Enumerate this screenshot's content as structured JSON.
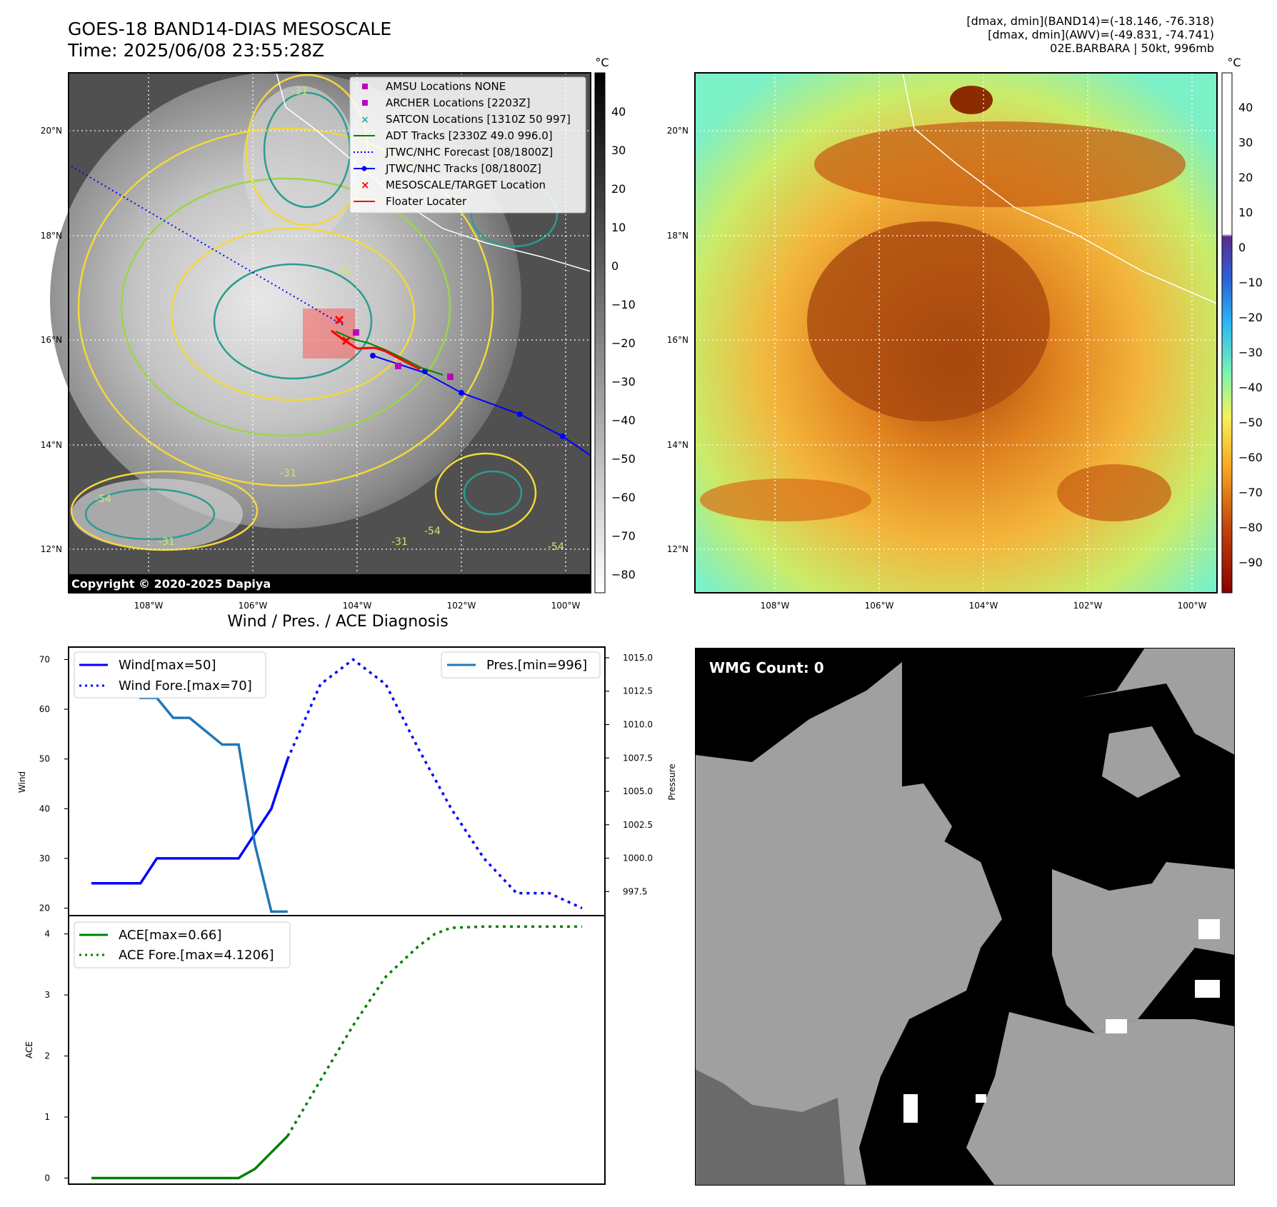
{
  "header": {
    "title_line1": "GOES-18 BAND14-DIAS MESOSCALE",
    "title_line2": "Time: 2025/06/08 23:55:28Z",
    "info_line1": "[dmax, dmin](BAND14)=(-18.146, -76.318)",
    "info_line2": "[dmax, dmin](AWV)=(-49.831, -74.741)",
    "info_line3": "02E.BARBARA | 50kt, 996mb"
  },
  "map_axes": {
    "lat_labels": [
      "20°N",
      "18°N",
      "16°N",
      "14°N",
      "12°N"
    ],
    "lon_labels": [
      "108°W",
      "106°W",
      "104°W",
      "102°W",
      "100°W"
    ]
  },
  "ir_panel": {
    "copyright": "Copyright © 2020-2025 Dapiya",
    "contour_labels": [
      "-31",
      "-31",
      "-31",
      "-54",
      "-31",
      "-31",
      "-54",
      "-54"
    ],
    "legend": [
      {
        "label": "AMSU Locations NONE",
        "marker": "square",
        "color": "#c000c0"
      },
      {
        "label": "ARCHER Locations [2203Z]",
        "marker": "square",
        "color": "#c000c0"
      },
      {
        "label": "SATCON Locations [1310Z 50 997]",
        "marker": "x",
        "color": "#20b2aa"
      },
      {
        "label": "ADT Tracks [2330Z 49.0 996.0]",
        "marker": "line",
        "color": "#008000"
      },
      {
        "label": "JTWC/NHC Forecast [08/1800Z]",
        "marker": "dotted",
        "color": "#0000ff"
      },
      {
        "label": "JTWC/NHC Tracks [08/1800Z]",
        "marker": "line-dot",
        "color": "#0000ff"
      },
      {
        "label": "MESOSCALE/TARGET Location",
        "marker": "x",
        "color": "#ff0000"
      },
      {
        "label": "Floater Locater",
        "marker": "line",
        "color": "#ff0000"
      }
    ],
    "colorbar": {
      "unit": "°C",
      "ticks": [
        "40",
        "30",
        "20",
        "10",
        "0",
        "−10",
        "−20",
        "−30",
        "−40",
        "−50",
        "−60",
        "−70",
        "−80"
      ]
    }
  },
  "awv_panel": {
    "colorbar": {
      "unit": "°C",
      "ticks": [
        "40",
        "30",
        "20",
        "10",
        "0",
        "−10",
        "−20",
        "−30",
        "−40",
        "−50",
        "−60",
        "−70",
        "−80",
        "−90"
      ]
    }
  },
  "wmg_panel": {
    "label": "WMG Count: 0"
  },
  "diagnosis_title": "Wind / Pres. / ACE Diagnosis",
  "chart_data": [
    {
      "type": "line",
      "title": "Wind / Pres. / ACE Diagnosis",
      "ylabel": "Wind",
      "ylabel_right": "Pressure",
      "ylim": [
        18.5,
        72.5
      ],
      "y2lim": [
        995.7,
        1015.8
      ],
      "yticks": [
        "70",
        "60",
        "50",
        "40",
        "30",
        "20"
      ],
      "y2ticks": [
        "1015.0",
        "1012.5",
        "1010.0",
        "1007.5",
        "1005.0",
        "1002.5",
        "1000.0",
        "997.5"
      ],
      "legend_left": [
        "Wind[max=50]",
        "Wind Fore.[max=70]"
      ],
      "legend_right": [
        "Pres.[min=996]"
      ],
      "series": [
        {
          "name": "Wind[max=50]",
          "style": "solid",
          "color": "#0000ff",
          "axis": "left",
          "x": [
            0,
            3,
            4,
            9,
            11,
            12,
            12
          ],
          "values": [
            25,
            25,
            30,
            30,
            40,
            50,
            50
          ]
        },
        {
          "name": "Wind Fore.[max=70]",
          "style": "dotted",
          "color": "#0000ff",
          "axis": "left",
          "x": [
            12,
            14,
            16,
            18,
            20,
            22,
            24,
            26,
            28,
            30
          ],
          "values": [
            50,
            65,
            70,
            65,
            52,
            40,
            30,
            23,
            23,
            20
          ]
        },
        {
          "name": "Pres.[min=996]",
          "style": "solid",
          "color": "#1f77b4",
          "axis": "right",
          "x": [
            0,
            2,
            3,
            4,
            5,
            6,
            7,
            8,
            9,
            10,
            11,
            12
          ],
          "values": [
            1015,
            1015,
            1012,
            1012,
            1010.5,
            1010.5,
            1009.5,
            1008.5,
            1008.5,
            1001,
            996,
            996
          ]
        }
      ]
    },
    {
      "type": "line",
      "ylabel": "ACE",
      "ylim": [
        -0.1,
        4.3
      ],
      "yticks": [
        "4",
        "3",
        "2",
        "1",
        "0"
      ],
      "legend_left": [
        "ACE[max=0.66]",
        "ACE Fore.[max=4.1206]"
      ],
      "series": [
        {
          "name": "ACE[max=0.66]",
          "style": "solid",
          "color": "#008000",
          "x": [
            0,
            9,
            10,
            12
          ],
          "values": [
            0,
            0,
            0.15,
            0.69
          ]
        },
        {
          "name": "ACE Fore.[max=4.1206]",
          "style": "dotted",
          "color": "#008000",
          "x": [
            12,
            14,
            16,
            18,
            20,
            21,
            22,
            24,
            26,
            28,
            30
          ],
          "values": [
            0.69,
            1.6,
            2.5,
            3.3,
            3.8,
            4.0,
            4.1,
            4.12,
            4.12,
            4.12,
            4.12
          ]
        }
      ]
    }
  ]
}
